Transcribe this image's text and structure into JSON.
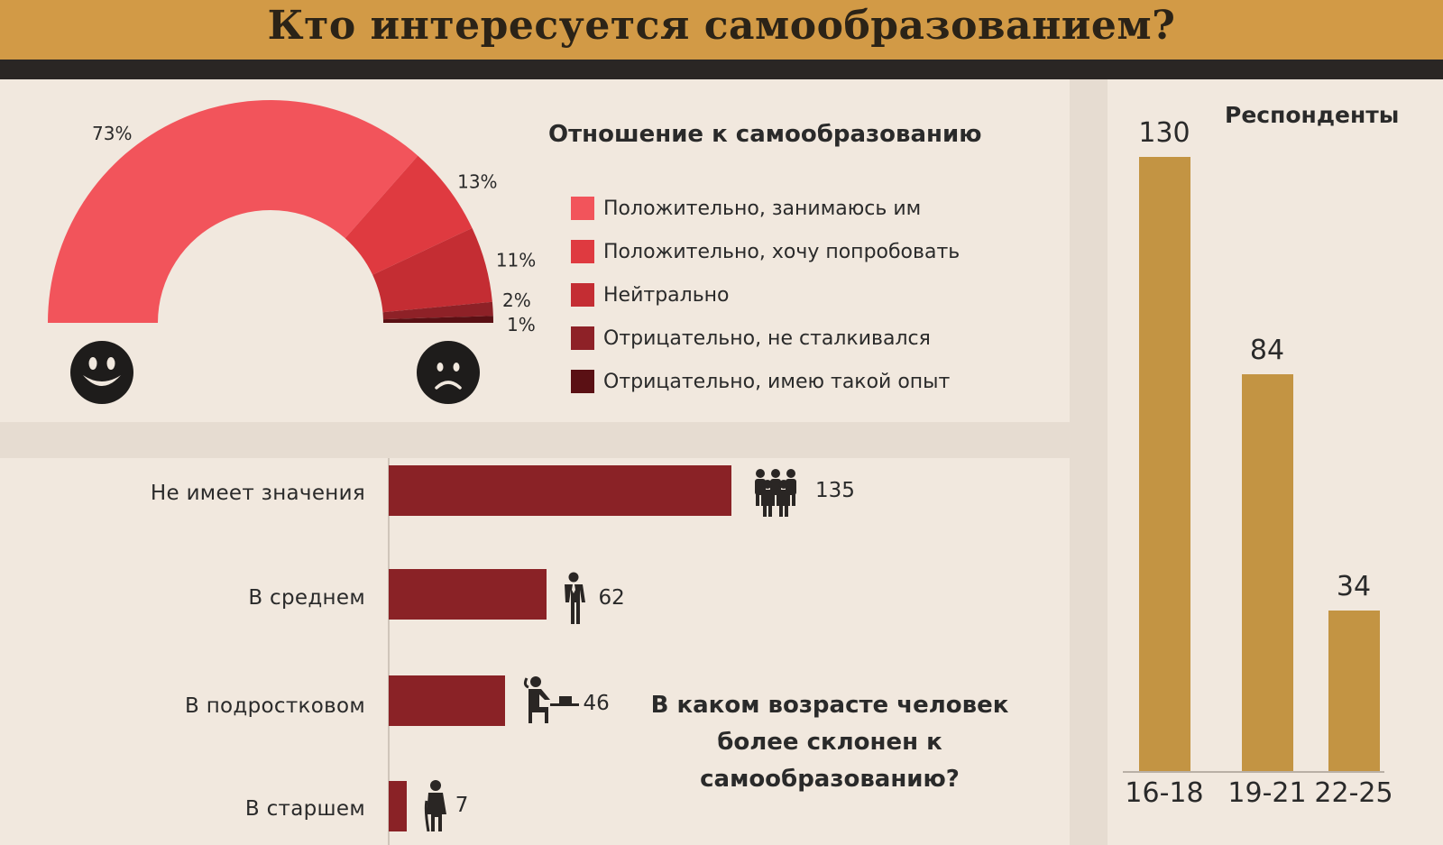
{
  "header": {
    "title": "Кто интересуется самообразованием?"
  },
  "colors": {
    "header_band": "#d29a46",
    "header_bar": "#2a2624",
    "hbar": "#8a2226",
    "vbar": "#c39443",
    "background": "#f1e8de"
  },
  "chart_data": [
    {
      "type": "pie",
      "variant": "half-donut",
      "title": "Отношение к самообразованию",
      "legend_position": "right",
      "slices": [
        {
          "label": "Положительно, занимаюсь им",
          "value": 73,
          "display": "73%",
          "color": "#f2545b"
        },
        {
          "label": "Положительно, хочу попробовать",
          "value": 13,
          "display": "13%",
          "color": "#df3a40"
        },
        {
          "label": "Нейтрально",
          "value": 11,
          "display": "11%",
          "color": "#c42d33"
        },
        {
          "label": "Отрицательно, не сталкивался",
          "value": 2,
          "display": "2%",
          "color": "#8e2127"
        },
        {
          "label": "Отрицательно, имею такой опыт",
          "value": 1,
          "display": "1%",
          "color": "#5a1014"
        }
      ],
      "icons": {
        "start": "smiley-face-icon",
        "end": "sad-face-icon"
      }
    },
    {
      "type": "bar",
      "orientation": "horizontal",
      "title": "В каком возрасте человек более склонен к самообразованию?",
      "categories": [
        "Не имеет значения",
        "В среднем",
        "В подростковом",
        "В старшем"
      ],
      "values": [
        135,
        62,
        46,
        7
      ],
      "icons": [
        "people-group-icon",
        "businessman-icon",
        "student-at-desk-icon",
        "elderly-person-icon"
      ],
      "xlim": [
        0,
        135
      ]
    },
    {
      "type": "bar",
      "orientation": "vertical",
      "title": "Респонденты",
      "categories": [
        "16-18",
        "19-21",
        "22-25"
      ],
      "values": [
        130,
        84,
        34
      ],
      "ylim": [
        0,
        130
      ]
    }
  ]
}
